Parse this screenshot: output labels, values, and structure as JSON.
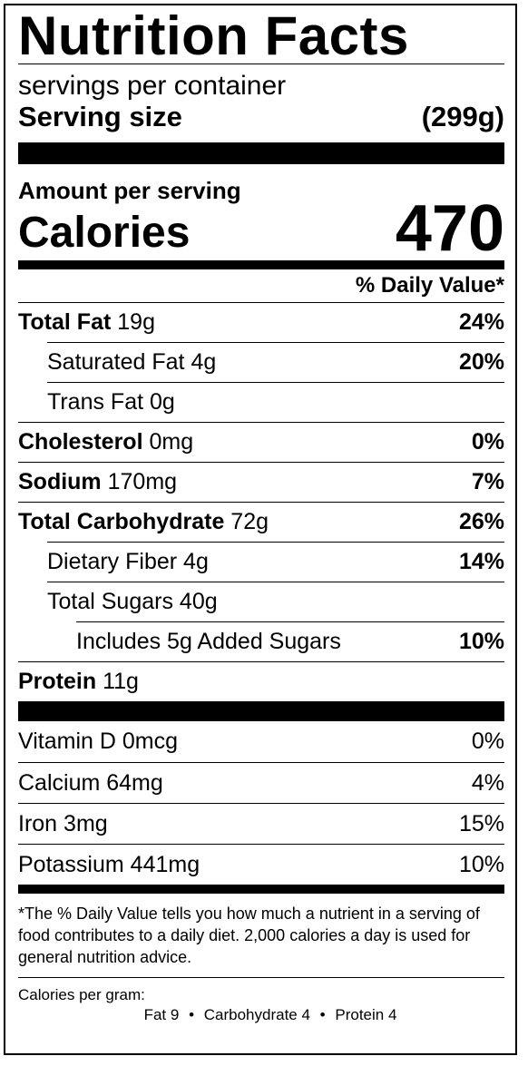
{
  "title": "Nutrition Facts",
  "servings_per_container": "servings per container",
  "serving_size": {
    "label": "Serving size",
    "value": "(299g)"
  },
  "amount_per_serving": "Amount per serving",
  "calories": {
    "label": "Calories",
    "value": "470"
  },
  "daily_value_header": "% Daily Value*",
  "nutrients": [
    {
      "name": "Total Fat",
      "amount": "19g",
      "dv": "24%"
    },
    {
      "name": "Saturated Fat",
      "amount": "4g",
      "dv": "20%"
    },
    {
      "name": "Trans Fat",
      "amount": "0g",
      "dv": ""
    },
    {
      "name": "Cholesterol",
      "amount": "0mg",
      "dv": "0%"
    },
    {
      "name": "Sodium",
      "amount": "170mg",
      "dv": "7%"
    },
    {
      "name": "Total Carbohydrate",
      "amount": "72g",
      "dv": "26%"
    },
    {
      "name": "Dietary Fiber",
      "amount": "4g",
      "dv": "14%"
    },
    {
      "name": "Total Sugars",
      "amount": "40g",
      "dv": ""
    },
    {
      "name": "Includes 5g Added Sugars",
      "amount": "",
      "dv": "10%"
    },
    {
      "name": "Protein",
      "amount": "11g",
      "dv": ""
    }
  ],
  "vitamins": [
    {
      "name": "Vitamin D",
      "amount": "0mcg",
      "dv": "0%"
    },
    {
      "name": "Calcium",
      "amount": "64mg",
      "dv": "4%"
    },
    {
      "name": "Iron",
      "amount": "3mg",
      "dv": "15%"
    },
    {
      "name": "Potassium",
      "amount": "441mg",
      "dv": "10%"
    }
  ],
  "footnote": "*The % Daily Value tells you how much a nutrient in a serving of food contributes to a daily diet. 2,000 calories a day is used for general nutrition advice.",
  "calories_per_gram": {
    "label": "Calories per gram:",
    "fat": "Fat 9",
    "carbohydrate": "Carbohydrate 4",
    "protein": "Protein 4",
    "separator": "•"
  }
}
